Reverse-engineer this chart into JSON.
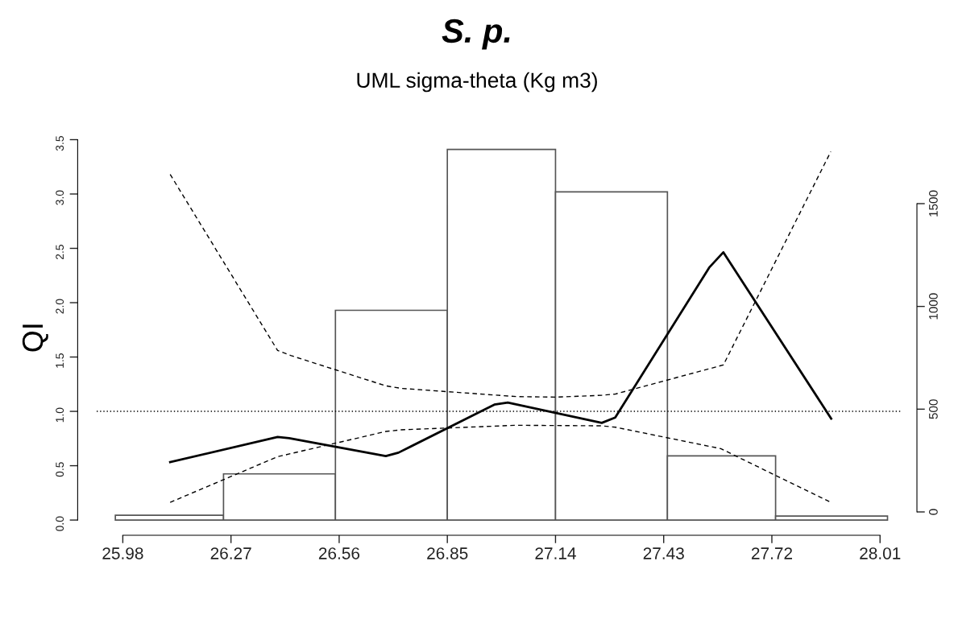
{
  "chart_data": {
    "type": "histogram",
    "title": "S. p.",
    "subtitle": "UML sigma-theta (Kg m3)",
    "ylabel": "QI",
    "bins": [
      25.96,
      26.25,
      26.55,
      26.85,
      27.14,
      27.44,
      27.73,
      28.03
    ],
    "values": [
      0.044,
      0.425,
      1.93,
      3.41,
      3.02,
      0.59,
      0.037
    ],
    "color": "#ffffff",
    "series": [
      {
        "type": "line",
        "color": "#000000",
        "line_style": "solid",
        "x": [
          26.107,
          26.395,
          26.426,
          26.685,
          26.719,
          26.976,
          27.012,
          27.264,
          27.3,
          27.552,
          27.59,
          27.879
        ],
        "values": [
          0.533,
          0.765,
          0.753,
          0.588,
          0.62,
          1.062,
          1.081,
          0.894,
          0.943,
          2.323,
          2.464,
          0.933
        ]
      },
      {
        "type": "line",
        "color": "#000000",
        "line_style": "dashed",
        "x": [
          26.107,
          26.395,
          26.43,
          26.685,
          26.725,
          27.035,
          27.143,
          27.264,
          27.301,
          27.59,
          27.878
        ],
        "values": [
          3.18,
          1.56,
          1.514,
          1.235,
          1.212,
          1.136,
          1.131,
          1.148,
          1.16,
          1.427,
          3.39
        ]
      },
      {
        "type": "line",
        "color": "#000000",
        "line_style": "dashed",
        "x": [
          26.107,
          26.395,
          26.685,
          26.725,
          27.035,
          27.264,
          27.301,
          27.583,
          27.878
        ],
        "values": [
          0.163,
          0.583,
          0.815,
          0.83,
          0.872,
          0.867,
          0.854,
          0.657,
          0.163
        ]
      }
    ],
    "ref_lines": [
      {
        "axis": "y",
        "value": 1,
        "line_style": "dotted",
        "color": "#000000"
      }
    ],
    "xlim": [
      25.91,
      28.07
    ],
    "xticks": [
      25.98,
      26.27,
      26.56,
      26.85,
      27.14,
      27.43,
      27.72,
      28.01
    ],
    "ylim": [
      -0.14,
      3.5
    ],
    "yticks": [
      {
        "value": 0,
        "label": "0.0"
      },
      {
        "value": 0.5,
        "label": "0.5"
      },
      {
        "value": 1,
        "label": "1.0"
      },
      {
        "value": 1.5,
        "label": "1.5"
      },
      {
        "value": 2,
        "label": "2.0"
      },
      {
        "value": 2.5,
        "label": "2.5"
      },
      {
        "value": 3,
        "label": "3.0"
      },
      {
        "value": 3.5,
        "label": "3.5"
      }
    ],
    "y2lim": [
      0,
      1500
    ],
    "y2ticks": [
      0,
      500,
      1000,
      1500
    ],
    "grid": false,
    "legend": false
  }
}
